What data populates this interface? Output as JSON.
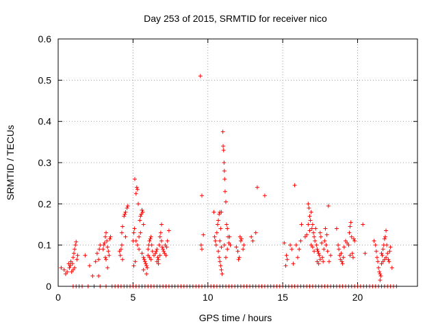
{
  "chart_data": {
    "type": "scatter",
    "title": "Day 253 of 2015, SRMTID for receiver nico",
    "xlabel": "GPS time / hours",
    "ylabel": "SRMTID / TECUs",
    "xlim": [
      0,
      24
    ],
    "ylim": [
      0,
      0.6
    ],
    "xticks": [
      0,
      5,
      10,
      15,
      20
    ],
    "yticks": [
      0,
      0.1,
      0.2,
      0.3,
      0.4,
      0.5,
      0.6
    ],
    "xtick_labels": [
      "0",
      "5",
      "10",
      "15",
      "20"
    ],
    "ytick_labels": [
      "0",
      "0.1",
      "0.2",
      "0.3",
      "0.4",
      "0.5",
      "0.6"
    ],
    "grid": true,
    "marker": "+",
    "series": [
      {
        "name": "SRMTID",
        "color": "#ff0000",
        "points": [
          [
            0.2,
            0.045
          ],
          [
            0.4,
            0.04
          ],
          [
            0.5,
            0.03
          ],
          [
            0.6,
            0.035
          ],
          [
            0.7,
            0.055
          ],
          [
            0.75,
            0.045
          ],
          [
            0.8,
            0.05
          ],
          [
            0.85,
            0.06
          ],
          [
            0.9,
            0.035
          ],
          [
            0.95,
            0.055
          ],
          [
            1.0,
            0.07
          ],
          [
            1.05,
            0.08
          ],
          [
            1.1,
            0.09
          ],
          [
            1.15,
            0.1
          ],
          [
            1.2,
            0.108
          ],
          [
            1.25,
            0.065
          ],
          [
            1.3,
            0.075
          ],
          [
            1.0,
            0.04
          ],
          [
            1.1,
            0.045
          ],
          [
            1.8,
            0.075
          ],
          [
            2.1,
            0.05
          ],
          [
            2.3,
            0.025
          ],
          [
            2.5,
            0.06
          ],
          [
            2.6,
            0.08
          ],
          [
            2.7,
            0.065
          ],
          [
            2.75,
            0.09
          ],
          [
            2.8,
            0.1
          ],
          [
            2.7,
            0.025
          ],
          [
            3.0,
            0.09
          ],
          [
            3.05,
            0.1
          ],
          [
            3.1,
            0.105
          ],
          [
            3.15,
            0.12
          ],
          [
            3.2,
            0.13
          ],
          [
            3.25,
            0.11
          ],
          [
            3.3,
            0.095
          ],
          [
            3.35,
            0.085
          ],
          [
            3.4,
            0.075
          ],
          [
            3.45,
            0.115
          ],
          [
            3.5,
            0.12
          ],
          [
            3.3,
            0.045
          ],
          [
            3.15,
            0.07
          ],
          [
            3.2,
            0.065
          ],
          [
            4.1,
            0.085
          ],
          [
            4.15,
            0.075
          ],
          [
            4.2,
            0.09
          ],
          [
            4.25,
            0.1
          ],
          [
            4.3,
            0.065
          ],
          [
            4.25,
            0.13
          ],
          [
            4.3,
            0.145
          ],
          [
            4.4,
            0.17
          ],
          [
            4.45,
            0.175
          ],
          [
            4.5,
            0.18
          ],
          [
            4.6,
            0.19
          ],
          [
            4.65,
            0.195
          ],
          [
            4.5,
            0.12
          ],
          [
            5.0,
            0.11
          ],
          [
            5.05,
            0.13
          ],
          [
            5.1,
            0.14
          ],
          [
            5.12,
            0.26
          ],
          [
            5.2,
            0.225
          ],
          [
            5.25,
            0.24
          ],
          [
            5.3,
            0.235
          ],
          [
            5.35,
            0.2
          ],
          [
            5.2,
            0.11
          ],
          [
            5.3,
            0.1
          ],
          [
            5.4,
            0.09
          ],
          [
            5.45,
            0.16
          ],
          [
            5.5,
            0.17
          ],
          [
            5.55,
            0.175
          ],
          [
            5.6,
            0.185
          ],
          [
            5.65,
            0.18
          ],
          [
            5.7,
            0.15
          ],
          [
            5.4,
            0.12
          ],
          [
            5.5,
            0.13
          ],
          [
            5.6,
            0.08
          ],
          [
            5.7,
            0.07
          ],
          [
            5.75,
            0.065
          ],
          [
            5.8,
            0.06
          ],
          [
            5.85,
            0.055
          ],
          [
            5.9,
            0.05
          ],
          [
            5.95,
            0.045
          ],
          [
            6.0,
            0.09
          ],
          [
            6.05,
            0.1
          ],
          [
            6.1,
            0.11
          ],
          [
            6.15,
            0.115
          ],
          [
            6.2,
            0.12
          ],
          [
            6.25,
            0.1
          ],
          [
            6.3,
            0.085
          ],
          [
            5.7,
            0.04
          ],
          [
            5.9,
            0.03
          ],
          [
            6.0,
            0.075
          ],
          [
            6.1,
            0.07
          ],
          [
            6.2,
            0.065
          ],
          [
            6.4,
            0.075
          ],
          [
            6.5,
            0.08
          ],
          [
            6.55,
            0.085
          ],
          [
            6.6,
            0.09
          ],
          [
            6.65,
            0.07
          ],
          [
            6.7,
            0.065
          ],
          [
            6.75,
            0.1
          ],
          [
            6.8,
            0.12
          ],
          [
            6.85,
            0.13
          ],
          [
            6.9,
            0.11
          ],
          [
            6.95,
            0.095
          ],
          [
            7.0,
            0.09
          ],
          [
            7.05,
            0.085
          ],
          [
            7.1,
            0.08
          ],
          [
            7.15,
            0.1
          ],
          [
            7.2,
            0.075
          ],
          [
            7.25,
            0.095
          ],
          [
            6.9,
            0.15
          ],
          [
            7.3,
            0.11
          ],
          [
            7.4,
            0.135
          ],
          [
            6.6,
            0.06
          ],
          [
            6.7,
            0.055
          ],
          [
            6.8,
            0.075
          ],
          [
            5.05,
            0.05
          ],
          [
            5.15,
            0.06
          ],
          [
            9.5,
            0.51
          ],
          [
            9.6,
            0.22
          ],
          [
            9.55,
            0.1
          ],
          [
            9.6,
            0.09
          ],
          [
            9.7,
            0.125
          ],
          [
            10.4,
            0.18
          ],
          [
            10.45,
            0.12
          ],
          [
            10.5,
            0.11
          ],
          [
            10.55,
            0.1
          ],
          [
            10.6,
            0.13
          ],
          [
            10.65,
            0.15
          ],
          [
            10.7,
            0.16
          ],
          [
            10.75,
            0.175
          ],
          [
            10.8,
            0.18
          ],
          [
            10.85,
            0.14
          ],
          [
            10.7,
            0.085
          ],
          [
            10.75,
            0.07
          ],
          [
            10.8,
            0.06
          ],
          [
            10.85,
            0.05
          ],
          [
            10.9,
            0.04
          ],
          [
            10.95,
            0.03
          ],
          [
            10.8,
            0.11
          ],
          [
            10.9,
            0.095
          ],
          [
            10.9,
            0.18
          ],
          [
            11.0,
            0.375
          ],
          [
            11.02,
            0.34
          ],
          [
            11.05,
            0.33
          ],
          [
            11.08,
            0.3
          ],
          [
            11.1,
            0.28
          ],
          [
            11.12,
            0.26
          ],
          [
            11.15,
            0.23
          ],
          [
            11.2,
            0.205
          ],
          [
            11.25,
            0.15
          ],
          [
            11.3,
            0.14
          ],
          [
            11.35,
            0.12
          ],
          [
            11.4,
            0.105
          ],
          [
            11.45,
            0.12
          ],
          [
            11.5,
            0.1
          ],
          [
            11.2,
            0.07
          ],
          [
            11.3,
            0.09
          ],
          [
            11.1,
            0.1
          ],
          [
            11.9,
            0.095
          ],
          [
            12.0,
            0.085
          ],
          [
            12.05,
            0.065
          ],
          [
            12.1,
            0.07
          ],
          [
            12.15,
            0.12
          ],
          [
            12.2,
            0.11
          ],
          [
            12.25,
            0.115
          ],
          [
            12.35,
            0.09
          ],
          [
            12.4,
            0.1
          ],
          [
            12.9,
            0.12
          ],
          [
            13.0,
            0.11
          ],
          [
            13.2,
            0.13
          ],
          [
            13.3,
            0.24
          ],
          [
            13.8,
            0.22
          ],
          [
            15.1,
            0.105
          ],
          [
            15.2,
            0.05
          ],
          [
            15.25,
            0.075
          ],
          [
            15.3,
            0.065
          ],
          [
            15.5,
            0.1
          ],
          [
            15.6,
            0.09
          ],
          [
            15.7,
            0.055
          ],
          [
            15.8,
            0.245
          ],
          [
            15.9,
            0.1
          ],
          [
            16.0,
            0.07
          ],
          [
            16.1,
            0.09
          ],
          [
            16.2,
            0.11
          ],
          [
            16.25,
            0.15
          ],
          [
            16.5,
            0.12
          ],
          [
            16.6,
            0.125
          ],
          [
            16.7,
            0.2
          ],
          [
            16.75,
            0.19
          ],
          [
            16.8,
            0.17
          ],
          [
            16.85,
            0.16
          ],
          [
            16.9,
            0.18
          ],
          [
            16.95,
            0.14
          ],
          [
            17.0,
            0.15
          ],
          [
            17.05,
            0.13
          ],
          [
            17.1,
            0.12
          ],
          [
            17.15,
            0.11
          ],
          [
            17.2,
            0.14
          ],
          [
            17.25,
            0.1
          ],
          [
            17.3,
            0.09
          ],
          [
            17.35,
            0.085
          ],
          [
            17.4,
            0.08
          ],
          [
            17.45,
            0.075
          ],
          [
            17.5,
            0.13
          ],
          [
            17.55,
            0.12
          ],
          [
            17.6,
            0.105
          ],
          [
            17.65,
            0.07
          ],
          [
            17.7,
            0.06
          ],
          [
            17.75,
            0.09
          ],
          [
            17.8,
            0.11
          ],
          [
            17.9,
            0.1
          ],
          [
            18.0,
            0.085
          ],
          [
            18.1,
            0.06
          ],
          [
            18.2,
            0.075
          ],
          [
            17.3,
            0.06
          ],
          [
            17.4,
            0.055
          ],
          [
            17.5,
            0.065
          ],
          [
            16.9,
            0.1
          ],
          [
            17.0,
            0.095
          ],
          [
            17.1,
            0.085
          ],
          [
            18.05,
            0.195
          ],
          [
            17.85,
            0.14
          ],
          [
            17.95,
            0.125
          ],
          [
            16.8,
            0.135
          ],
          [
            16.7,
            0.15
          ],
          [
            18.6,
            0.14
          ],
          [
            18.7,
            0.1
          ],
          [
            18.75,
            0.09
          ],
          [
            18.8,
            0.075
          ],
          [
            18.85,
            0.065
          ],
          [
            18.9,
            0.08
          ],
          [
            18.95,
            0.06
          ],
          [
            19.0,
            0.055
          ],
          [
            19.05,
            0.07
          ],
          [
            19.1,
            0.095
          ],
          [
            19.2,
            0.11
          ],
          [
            19.3,
            0.105
          ],
          [
            19.4,
            0.1
          ],
          [
            19.45,
            0.13
          ],
          [
            19.5,
            0.145
          ],
          [
            19.55,
            0.155
          ],
          [
            19.6,
            0.12
          ],
          [
            19.65,
            0.08
          ],
          [
            19.7,
            0.07
          ],
          [
            19.75,
            0.115
          ],
          [
            19.8,
            0.11
          ],
          [
            19.5,
            0.075
          ],
          [
            20.35,
            0.15
          ],
          [
            20.5,
            0.08
          ],
          [
            21.1,
            0.11
          ],
          [
            21.2,
            0.1
          ],
          [
            21.25,
            0.085
          ],
          [
            21.3,
            0.07
          ],
          [
            21.35,
            0.06
          ],
          [
            21.4,
            0.045
          ],
          [
            21.45,
            0.035
          ],
          [
            21.5,
            0.03
          ],
          [
            21.55,
            0.025
          ],
          [
            21.6,
            0.08
          ],
          [
            21.65,
            0.075
          ],
          [
            21.7,
            0.09
          ],
          [
            21.75,
            0.1
          ],
          [
            21.8,
            0.115
          ],
          [
            21.85,
            0.12
          ],
          [
            21.9,
            0.135
          ],
          [
            21.95,
            0.1
          ],
          [
            22.0,
            0.08
          ],
          [
            22.05,
            0.065
          ],
          [
            22.1,
            0.06
          ],
          [
            22.15,
            0.085
          ],
          [
            22.2,
            0.095
          ],
          [
            22.3,
            0.045
          ],
          [
            21.6,
            0.055
          ],
          [
            21.7,
            0.06
          ],
          [
            21.8,
            0.065
          ],
          [
            21.9,
            0.07
          ],
          [
            21.5,
            0.015
          ]
        ],
        "zero_x": [
          1.0,
          1.2,
          1.4,
          1.6,
          2.0,
          2.4,
          2.8,
          3.2,
          3.6,
          3.8,
          4.0,
          4.2,
          4.4,
          4.6,
          4.8,
          5.0,
          5.2,
          5.4,
          5.6,
          5.8,
          6.0,
          6.2,
          6.4,
          6.6,
          6.8,
          7.0,
          7.2,
          7.4,
          7.6,
          7.8,
          8.0,
          8.2,
          8.4,
          8.6,
          8.8,
          9.0,
          9.2,
          9.4,
          9.6,
          9.8,
          10.0,
          10.2,
          10.4,
          10.6,
          10.8,
          11.0,
          11.2,
          11.4,
          11.6,
          11.8,
          12.0,
          12.2,
          12.4,
          12.6,
          12.8,
          13.0,
          13.2,
          13.4,
          13.6,
          13.8,
          14.0,
          14.2,
          14.4,
          14.6,
          14.8,
          15.0,
          15.2,
          15.4,
          15.6,
          15.8,
          16.0,
          16.2,
          16.4,
          16.6,
          16.8,
          17.0,
          17.2,
          17.4,
          17.6,
          17.8,
          18.0,
          18.2,
          18.4,
          18.6,
          18.8,
          19.0,
          19.2,
          19.4,
          19.6,
          19.8,
          20.0,
          20.2,
          20.4,
          20.6,
          20.8,
          21.0,
          21.2,
          21.4,
          21.6,
          21.8,
          22.0,
          22.2,
          22.4,
          22.6
        ]
      }
    ]
  }
}
